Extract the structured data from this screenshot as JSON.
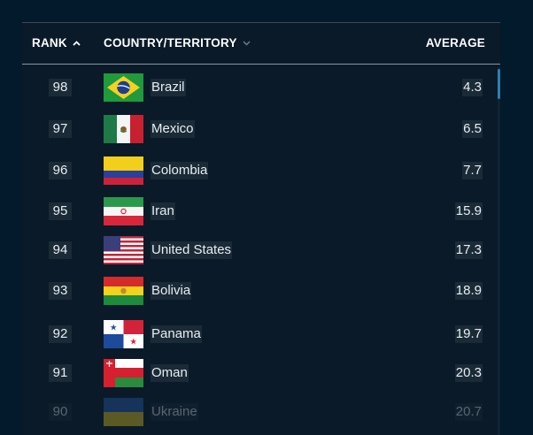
{
  "table": {
    "headers": {
      "rank": "RANK",
      "country": "COUNTRY/TERRITORY",
      "average": "AVERAGE"
    },
    "sort": {
      "column": "rank",
      "direction": "ascending"
    },
    "rows": [
      {
        "rank": "98",
        "country": "Brazil",
        "average": "4.3",
        "flag_icon": "brazil-flag-icon"
      },
      {
        "rank": "97",
        "country": "Mexico",
        "average": "6.5",
        "flag_icon": "mexico-flag-icon"
      },
      {
        "rank": "96",
        "country": "Colombia",
        "average": "7.7",
        "flag_icon": "colombia-flag-icon"
      },
      {
        "rank": "95",
        "country": "Iran",
        "average": "15.9",
        "flag_icon": "iran-flag-icon"
      },
      {
        "rank": "94",
        "country": "United States",
        "average": "17.3",
        "flag_icon": "united-states-flag-icon"
      },
      {
        "rank": "93",
        "country": "Bolivia",
        "average": "18.9",
        "flag_icon": "bolivia-flag-icon"
      },
      {
        "rank": "92",
        "country": "Panama",
        "average": "19.7",
        "flag_icon": "panama-flag-icon"
      },
      {
        "rank": "91",
        "country": "Oman",
        "average": "20.3",
        "flag_icon": "oman-flag-icon"
      },
      {
        "rank": "90",
        "country": "Ukraine",
        "average": "20.7",
        "flag_icon": "ukraine-flag-icon"
      }
    ]
  },
  "colors": {
    "background": "#021a2b",
    "panel": "#0a1a29",
    "text": "#e8edf2",
    "scrollbar_thumb": "#2f7fae"
  }
}
